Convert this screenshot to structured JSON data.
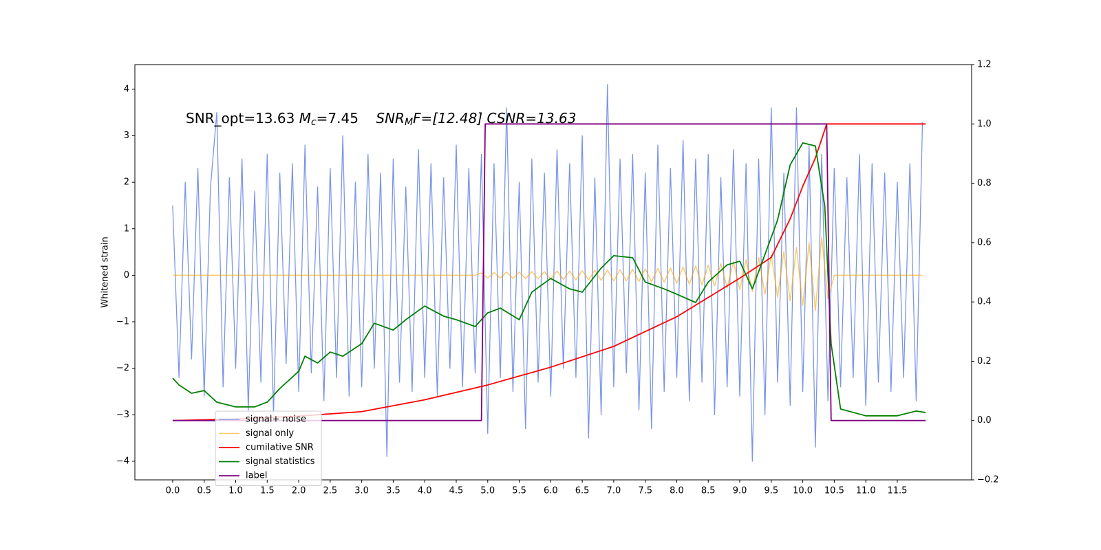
{
  "chart_data": {
    "type": "line",
    "annotation": [
      "SNR_opt=13.63 ",
      "M",
      "c",
      "=7.45    ",
      "SNR",
      "M",
      "F=[12.48] CSNR=13.63"
    ],
    "ylabel": "Whitened strain",
    "xlim": [
      -0.6,
      12.68
    ],
    "ylim": [
      -4.4,
      4.53
    ],
    "y2lim": [
      -0.2,
      1.2
    ],
    "xticks": [
      {
        "value": 0,
        "label": "0.0"
      },
      0.5,
      {
        "value": 1,
        "label": "1.0"
      },
      1.5,
      {
        "value": 2,
        "label": "2.0"
      },
      2.5,
      {
        "value": 3,
        "label": "3.0"
      },
      3.5,
      {
        "value": 4,
        "label": "4.0"
      },
      4.5,
      {
        "value": 5,
        "label": "5.0"
      },
      5.5,
      {
        "value": 6,
        "label": "6.0"
      },
      6.5,
      {
        "value": 7,
        "label": "7.0"
      },
      7.5,
      {
        "value": 8,
        "label": "8.0"
      },
      8.5,
      {
        "value": 9,
        "label": "9.0"
      },
      9.5,
      {
        "value": 10,
        "label": "10.0"
      },
      10.5,
      {
        "value": 11,
        "label": "11.0"
      },
      11.5
    ],
    "yticks": [
      {
        "value": -4,
        "label": "−4"
      },
      {
        "value": -3,
        "label": "−3"
      },
      {
        "value": -2,
        "label": "−2"
      },
      {
        "value": -1,
        "label": "−1"
      },
      0,
      1,
      2,
      3,
      4
    ],
    "y2ticks": [
      {
        "value": -0.2,
        "label": "−0.2"
      },
      {
        "value": 0,
        "label": "0.0"
      },
      0.2,
      0.4,
      0.6,
      0.8,
      {
        "value": 1,
        "label": "1.0"
      },
      1.2
    ],
    "x": [
      0,
      0.1,
      0.2,
      0.3,
      0.4,
      0.5,
      0.6,
      0.7,
      0.8,
      0.9,
      1,
      1.1,
      1.2,
      1.3,
      1.4,
      1.5,
      1.6,
      1.7,
      1.8,
      1.9,
      2,
      2.1,
      2.2,
      2.3,
      2.4,
      2.5,
      2.6,
      2.7,
      2.8,
      2.9,
      3,
      3.1,
      3.2,
      3.3,
      3.4,
      3.5,
      3.6,
      3.7,
      3.8,
      3.9,
      4,
      4.1,
      4.2,
      4.3,
      4.4,
      4.5,
      4.6,
      4.7,
      4.8,
      4.9,
      5,
      5.1,
      5.2,
      5.3,
      5.4,
      5.5,
      5.6,
      5.7,
      5.8,
      5.9,
      6,
      6.1,
      6.2,
      6.3,
      6.4,
      6.5,
      6.6,
      6.7,
      6.8,
      6.9,
      7,
      7.1,
      7.2,
      7.3,
      7.4,
      7.5,
      7.6,
      7.7,
      7.8,
      7.9,
      8,
      8.1,
      8.2,
      8.3,
      8.4,
      8.5,
      8.6,
      8.7,
      8.8,
      8.9,
      9,
      9.1,
      9.2,
      9.3,
      9.4,
      9.5,
      9.6,
      9.7,
      9.8,
      9.9,
      10,
      10.1,
      10.2,
      10.3,
      10.4,
      10.5,
      10.6,
      10.7,
      10.8,
      10.9,
      11,
      11.1,
      11.2,
      11.3,
      11.4,
      11.5,
      11.6,
      11.7,
      11.8,
      11.9
    ],
    "legend": "lower left",
    "series": [
      {
        "name": "signal+ noise",
        "color": "#7a95e8",
        "values": [
          1.5,
          -2.2,
          2.0,
          -1.8,
          2.3,
          -2.6,
          1.9,
          3.5,
          -2.4,
          2.1,
          -2.0,
          2.5,
          -2.9,
          1.8,
          -2.3,
          2.6,
          -3.0,
          2.2,
          -1.9,
          2.4,
          -2.5,
          2.8,
          -2.1,
          1.9,
          -2.7,
          2.3,
          -2.2,
          3.0,
          -2.6,
          2.0,
          -2.4,
          2.6,
          -2.0,
          2.2,
          -3.9,
          2.5,
          -2.3,
          1.9,
          -2.5,
          2.7,
          -2.2,
          2.4,
          -2.6,
          2.1,
          -2.0,
          2.8,
          -2.4,
          2.3,
          -2.1,
          2.6,
          -3.4,
          2.4,
          -2.2,
          3.6,
          -2.5,
          2.0,
          -3.3,
          2.5,
          -2.3,
          2.2,
          -2.6,
          2.7,
          -2.0,
          2.4,
          -2.2,
          3.0,
          -3.5,
          2.1,
          -3.0,
          4.1,
          -2.4,
          2.5,
          -2.1,
          2.6,
          -2.9,
          2.2,
          -3.3,
          2.8,
          -2.5,
          2.3,
          -2.2,
          2.9,
          -2.7,
          2.5,
          -2.3,
          2.6,
          -3.0,
          2.1,
          -2.4,
          2.7,
          -2.6,
          2.4,
          -4.0,
          2.5,
          -3.0,
          3.6,
          -2.3,
          2.2,
          -2.8,
          3.6,
          -2.5,
          2.8,
          -3.7,
          2.6,
          -2.7,
          2.3,
          -2.4,
          2.1,
          -2.2,
          2.6,
          -2.8,
          2.4,
          -2.3,
          2.2,
          -2.5,
          2.0,
          -2.2,
          2.4,
          -2.7,
          3.3
        ]
      },
      {
        "name": "signal only",
        "color": "#ffa500",
        "values": [
          0,
          0,
          0,
          0,
          0,
          0,
          0,
          0,
          0,
          0,
          0,
          0,
          0,
          0,
          0,
          0,
          0,
          0,
          0,
          0,
          0,
          0,
          0,
          0,
          0,
          0,
          0,
          0,
          0,
          0,
          0,
          0,
          0,
          0,
          0,
          0,
          0,
          0,
          0,
          0,
          0,
          0,
          0,
          0,
          0,
          0,
          0,
          0,
          0,
          0.05,
          -0.06,
          0.06,
          -0.06,
          0.07,
          -0.07,
          0.07,
          -0.07,
          0.08,
          -0.08,
          0.08,
          -0.08,
          0.09,
          -0.09,
          0.09,
          -0.1,
          0.1,
          -0.1,
          0.11,
          -0.11,
          0.11,
          -0.12,
          0.12,
          -0.12,
          0.13,
          -0.13,
          0.14,
          -0.14,
          0.15,
          -0.15,
          0.16,
          -0.17,
          0.18,
          -0.19,
          0.2,
          -0.21,
          0.22,
          -0.23,
          0.25,
          -0.27,
          0.29,
          -0.31,
          0.33,
          -0.35,
          0.38,
          -0.41,
          0.44,
          -0.47,
          0.51,
          -0.55,
          0.6,
          -0.65,
          0.7,
          -0.76,
          0.82,
          -0.5,
          0,
          0,
          0,
          0,
          0,
          0,
          0,
          0,
          0,
          0,
          0,
          0,
          0,
          0,
          0
        ]
      },
      {
        "name": "cumilative SNR",
        "color": "#ff0000",
        "axis": "y2",
        "x": [
          0,
          1,
          2,
          3,
          4,
          5,
          6,
          7,
          8,
          9,
          9.5,
          9.8,
          10,
          10.2,
          10.38,
          11.95
        ],
        "values": [
          0,
          0.005,
          0.015,
          0.03,
          0.07,
          0.12,
          0.18,
          0.25,
          0.35,
          0.48,
          0.55,
          0.68,
          0.79,
          0.885,
          1.0,
          1.0
        ]
      },
      {
        "name": "signal statistics",
        "color": "#008000",
        "axis": "y2",
        "x": [
          0,
          0.1,
          0.3,
          0.5,
          0.7,
          1.0,
          1.3,
          1.5,
          1.7,
          2.0,
          2.1,
          2.3,
          2.5,
          2.7,
          3.0,
          3.2,
          3.5,
          3.7,
          4.0,
          4.3,
          4.5,
          4.8,
          5.0,
          5.2,
          5.5,
          5.7,
          6.0,
          6.3,
          6.5,
          6.8,
          7.0,
          7.3,
          7.5,
          7.8,
          8.0,
          8.3,
          8.5,
          8.8,
          9.0,
          9.2,
          9.4,
          9.6,
          9.8,
          10.0,
          10.2,
          10.35,
          10.45,
          10.6,
          11.0,
          11.5,
          11.8,
          11.95
        ],
        "values": [
          0.143,
          0.12,
          0.092,
          0.101,
          0.062,
          0.046,
          0.046,
          0.062,
          0.108,
          0.166,
          0.217,
          0.194,
          0.231,
          0.217,
          0.259,
          0.328,
          0.305,
          0.34,
          0.386,
          0.352,
          0.34,
          0.317,
          0.363,
          0.379,
          0.34,
          0.433,
          0.479,
          0.444,
          0.433,
          0.514,
          0.556,
          0.549,
          0.467,
          0.444,
          0.426,
          0.398,
          0.467,
          0.525,
          0.537,
          0.444,
          0.56,
          0.676,
          0.862,
          0.936,
          0.926,
          0.722,
          0.259,
          0.039,
          0.016,
          0.016,
          0.032,
          0.027
        ]
      },
      {
        "name": "label",
        "color": "#800080",
        "axis": "y2",
        "x": [
          0,
          4.9,
          4.96,
          10.38,
          10.45,
          11.95
        ],
        "values": [
          0,
          0,
          1,
          1,
          0,
          0
        ]
      }
    ]
  }
}
